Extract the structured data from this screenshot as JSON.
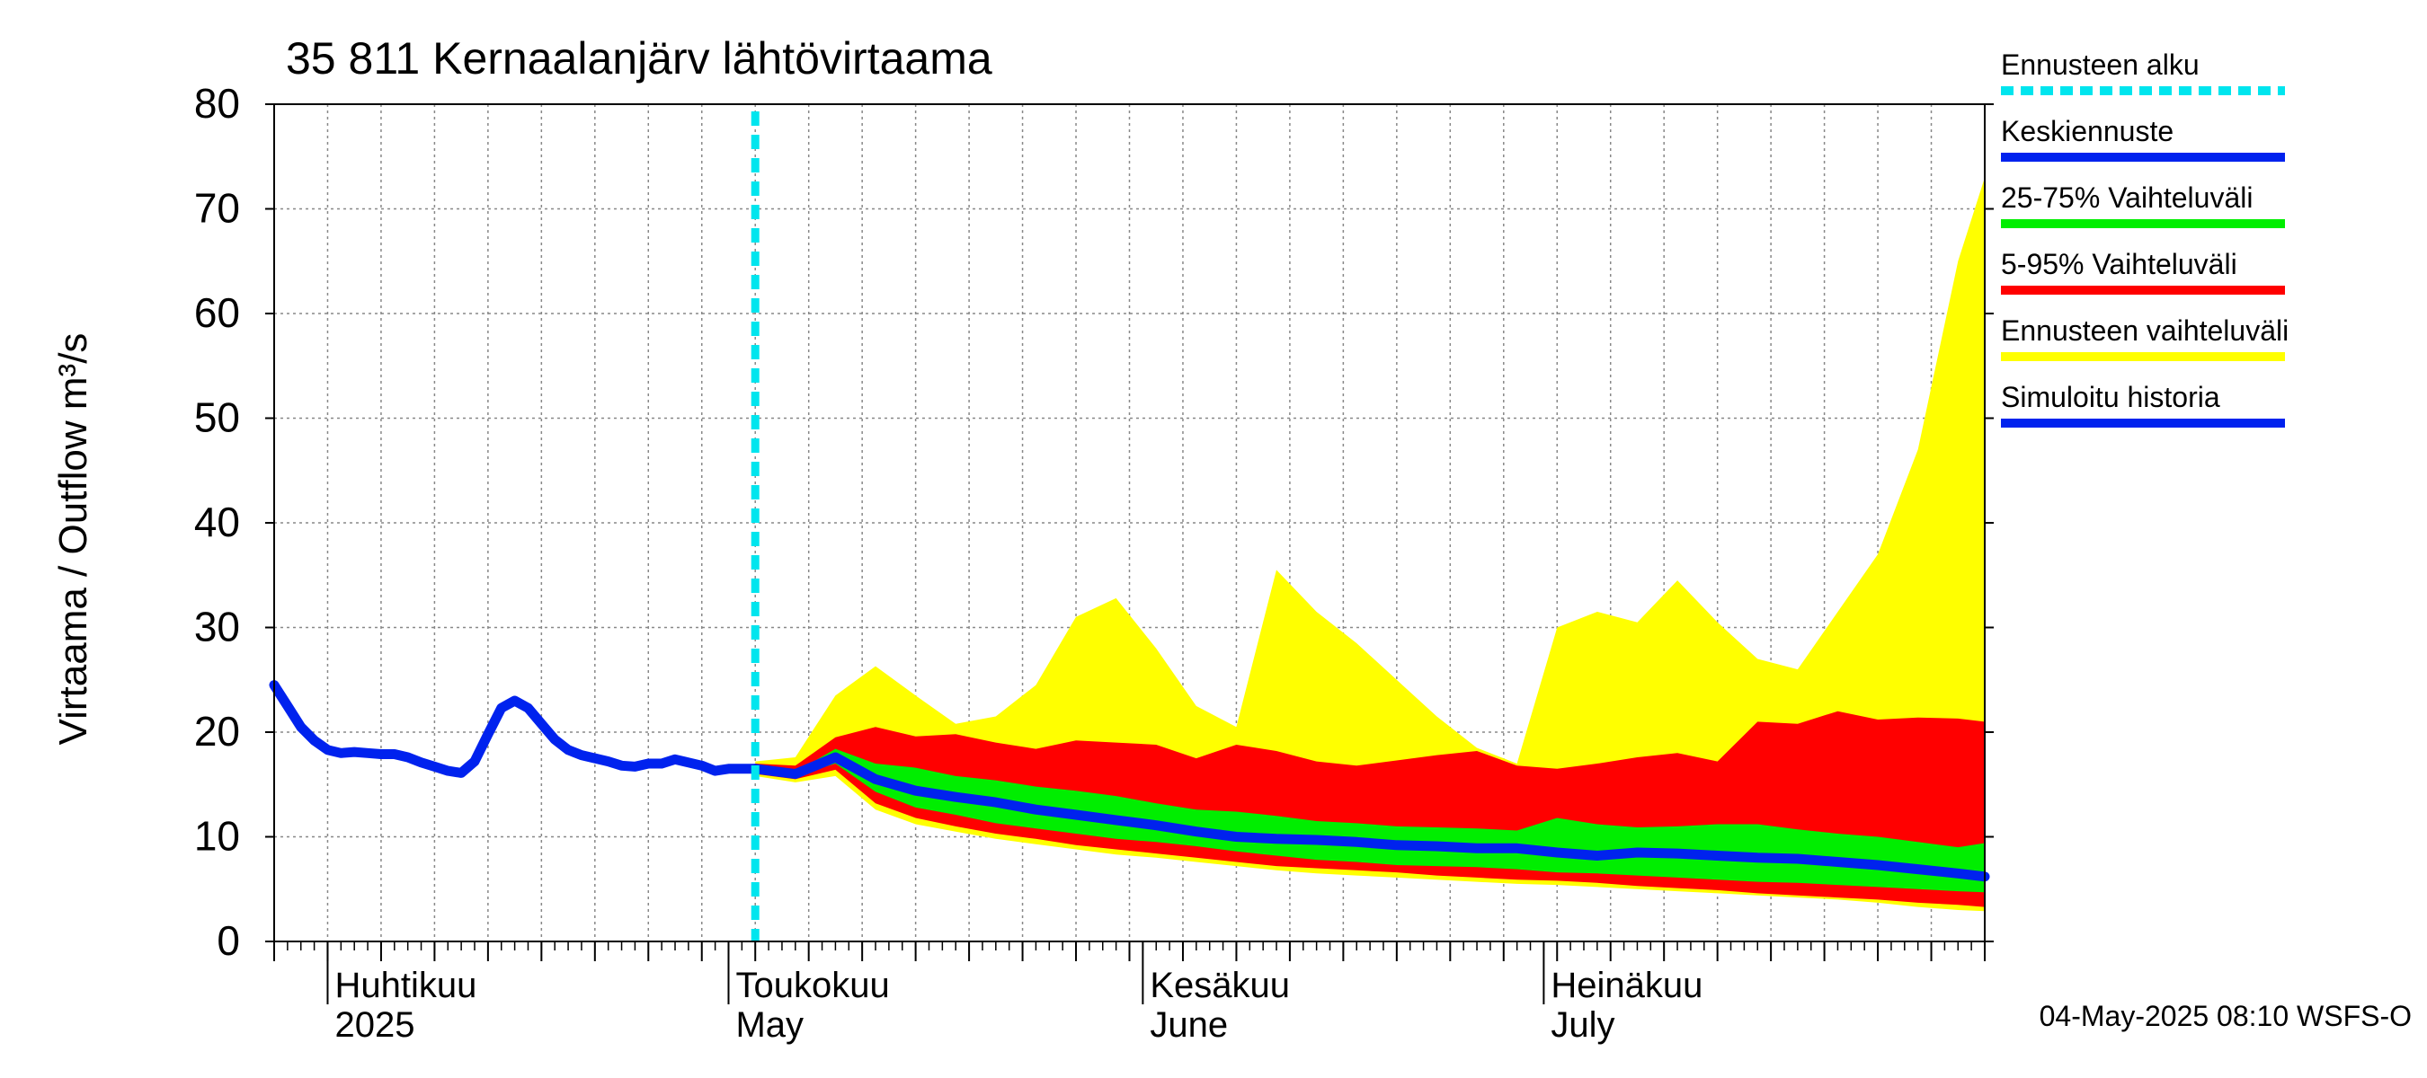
{
  "chart_data": {
    "type": "area",
    "title": "35 811 Kernaalanjärv lähtövirtaama",
    "ylabel": "Virtaama / Outflow    m³/s",
    "ylim": [
      0,
      80
    ],
    "yticks": [
      0,
      10,
      20,
      30,
      40,
      50,
      60,
      70,
      80
    ],
    "xlim": [
      "2025-03-28",
      "2025-08-03"
    ],
    "month_labels": [
      {
        "date": "2025-04-01",
        "fi": "Huhtikuu",
        "en": "2025"
      },
      {
        "date": "2025-05-01",
        "fi": "Toukokuu",
        "en": "May"
      },
      {
        "date": "2025-06-01",
        "fi": "Kesäkuu",
        "en": "June"
      },
      {
        "date": "2025-07-01",
        "fi": "Heinäkuu",
        "en": "July"
      }
    ],
    "forecast_start": "2025-05-03",
    "legend_position": "right",
    "legend": [
      {
        "label": "Ennusteen alku",
        "color": "#00e5ee",
        "style": "dashed"
      },
      {
        "label": "Keskiennuste",
        "color": "#0022ee",
        "style": "line"
      },
      {
        "label": "25-75% Vaihteluväli",
        "color": "#00ee00",
        "style": "band"
      },
      {
        "label": "5-95% Vaihteluväli",
        "color": "#ff0000",
        "style": "band"
      },
      {
        "label": "Ennusteen vaihteluväli",
        "color": "#ffff00",
        "style": "band"
      },
      {
        "label": "Simuloitu historia",
        "color": "#0022ee",
        "style": "line"
      }
    ],
    "footer": "04-May-2025 08:10 WSFS-O",
    "series": {
      "history": {
        "x": [
          "2025-03-28",
          "2025-03-29",
          "2025-03-30",
          "2025-03-31",
          "2025-04-01",
          "2025-04-02",
          "2025-04-03",
          "2025-04-04",
          "2025-04-05",
          "2025-04-06",
          "2025-04-07",
          "2025-04-08",
          "2025-04-09",
          "2025-04-10",
          "2025-04-11",
          "2025-04-12",
          "2025-04-13",
          "2025-04-14",
          "2025-04-15",
          "2025-04-16",
          "2025-04-17",
          "2025-04-18",
          "2025-04-19",
          "2025-04-20",
          "2025-04-21",
          "2025-04-22",
          "2025-04-23",
          "2025-04-24",
          "2025-04-25",
          "2025-04-26",
          "2025-04-27",
          "2025-04-28",
          "2025-04-29",
          "2025-04-30",
          "2025-05-01",
          "2025-05-02",
          "2025-05-03"
        ],
        "y": [
          24.5,
          22.5,
          20.5,
          19.2,
          18.3,
          18.0,
          18.1,
          18.0,
          17.9,
          17.9,
          17.6,
          17.1,
          16.7,
          16.3,
          16.1,
          17.2,
          19.8,
          22.3,
          23.0,
          22.3,
          20.8,
          19.3,
          18.3,
          17.8,
          17.5,
          17.2,
          16.8,
          16.7,
          17.0,
          17.0,
          17.4,
          17.1,
          16.8,
          16.3,
          16.5,
          16.5,
          16.5
        ]
      },
      "ensemble": {
        "x": [
          "2025-05-03",
          "2025-05-06",
          "2025-05-09",
          "2025-05-12",
          "2025-05-15",
          "2025-05-18",
          "2025-05-21",
          "2025-05-24",
          "2025-05-27",
          "2025-05-30",
          "2025-06-02",
          "2025-06-05",
          "2025-06-08",
          "2025-06-11",
          "2025-06-14",
          "2025-06-17",
          "2025-06-20",
          "2025-06-23",
          "2025-06-26",
          "2025-06-29",
          "2025-07-02",
          "2025-07-05",
          "2025-07-08",
          "2025-07-11",
          "2025-07-14",
          "2025-07-17",
          "2025-07-20",
          "2025-07-23",
          "2025-07-26",
          "2025-07-29",
          "2025-08-01",
          "2025-08-03"
        ],
        "mean": [
          16.5,
          16.0,
          17.6,
          15.5,
          14.4,
          13.8,
          13.3,
          12.6,
          12.1,
          11.6,
          11.1,
          10.5,
          10.0,
          9.8,
          9.7,
          9.5,
          9.2,
          9.1,
          8.9,
          8.9,
          8.5,
          8.2,
          8.5,
          8.4,
          8.2,
          8.0,
          7.9,
          7.6,
          7.3,
          6.9,
          6.5,
          6.2
        ],
        "p25": [
          16.3,
          15.8,
          17.0,
          14.3,
          12.8,
          12.1,
          11.3,
          10.8,
          10.3,
          9.8,
          9.5,
          9.1,
          8.6,
          8.2,
          7.8,
          7.6,
          7.3,
          7.2,
          7.1,
          6.9,
          6.6,
          6.5,
          6.3,
          6.1,
          5.9,
          5.7,
          5.6,
          5.4,
          5.2,
          5.0,
          4.8,
          4.7
        ],
        "p75": [
          16.7,
          16.2,
          18.4,
          17.0,
          16.6,
          15.8,
          15.4,
          14.8,
          14.4,
          13.9,
          13.2,
          12.6,
          12.4,
          12.0,
          11.5,
          11.3,
          11.0,
          10.9,
          10.8,
          10.6,
          11.8,
          11.2,
          10.9,
          11.0,
          11.2,
          11.2,
          10.7,
          10.3,
          10.0,
          9.5,
          9.0,
          9.4
        ],
        "p05": [
          16.0,
          15.5,
          16.4,
          13.2,
          11.8,
          11.0,
          10.3,
          9.8,
          9.2,
          8.8,
          8.4,
          8.0,
          7.6,
          7.2,
          7.0,
          6.8,
          6.6,
          6.3,
          6.1,
          5.9,
          5.8,
          5.6,
          5.3,
          5.1,
          4.9,
          4.6,
          4.4,
          4.2,
          4.0,
          3.7,
          3.5,
          3.3
        ],
        "p95": [
          17.0,
          16.8,
          19.5,
          20.5,
          19.6,
          19.8,
          19.0,
          18.4,
          19.2,
          19.0,
          18.8,
          17.5,
          18.8,
          18.2,
          17.2,
          16.8,
          17.3,
          17.8,
          18.2,
          16.8,
          16.5,
          17.0,
          17.6,
          18.0,
          17.2,
          21.0,
          20.8,
          22.0,
          21.2,
          21.4,
          21.3,
          21.0
        ],
        "min": [
          15.8,
          15.2,
          15.8,
          12.6,
          11.2,
          10.5,
          9.8,
          9.3,
          8.8,
          8.3,
          8.0,
          7.6,
          7.2,
          6.8,
          6.5,
          6.3,
          6.1,
          5.9,
          5.7,
          5.5,
          5.4,
          5.2,
          5.0,
          4.8,
          4.6,
          4.4,
          4.2,
          4.0,
          3.7,
          3.3,
          3.0,
          2.9
        ],
        "max": [
          17.2,
          17.6,
          23.5,
          26.3,
          23.5,
          20.8,
          21.5,
          24.5,
          31.0,
          32.8,
          28.0,
          22.5,
          20.5,
          35.5,
          31.5,
          28.5,
          25.0,
          21.5,
          18.5,
          17.0,
          30.0,
          31.5,
          30.5,
          34.5,
          30.5,
          27.0,
          26.0,
          31.5,
          37.0,
          47.0,
          65.0,
          73.0
        ]
      }
    }
  }
}
